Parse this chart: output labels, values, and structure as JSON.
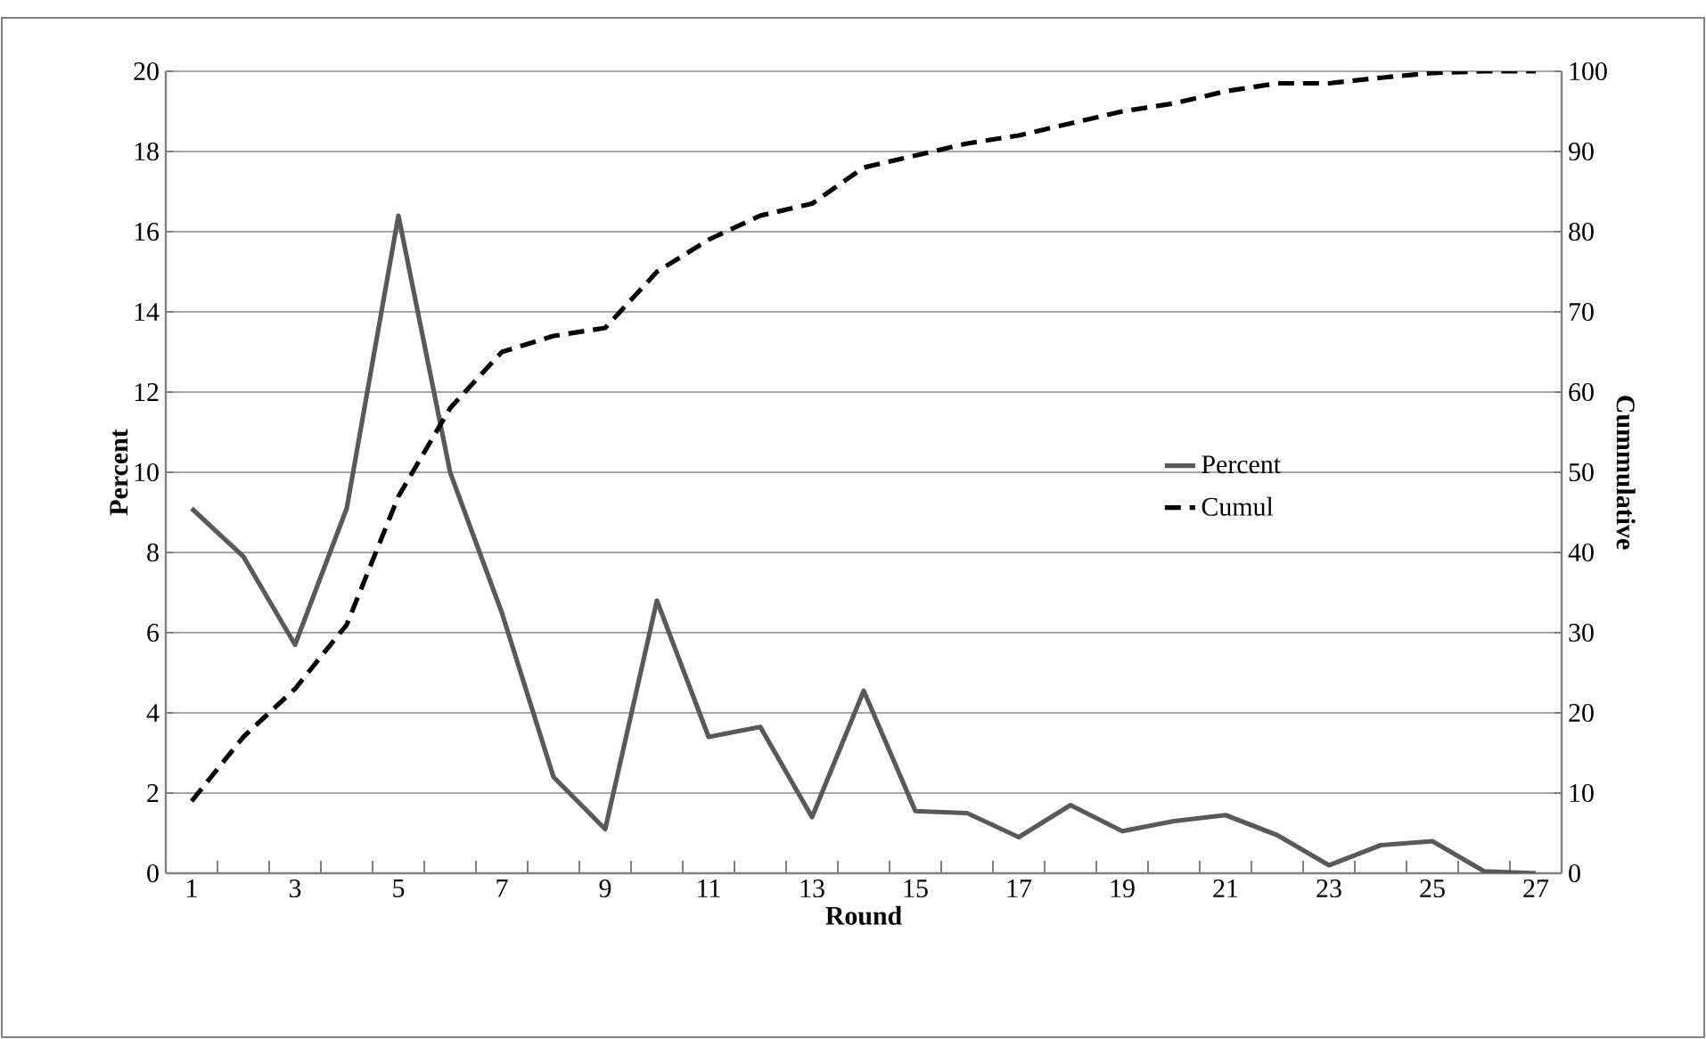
{
  "chart_data": {
    "type": "line",
    "xlabel": "Round",
    "ylabel": "Percent",
    "y2label": "Cummulative",
    "categories": [
      "1",
      null,
      "3",
      null,
      "5",
      null,
      "7",
      null,
      "9",
      null,
      "11",
      null,
      "13",
      null,
      "15",
      null,
      "17",
      null,
      "19",
      null,
      "21",
      null,
      "23",
      null,
      "25",
      null,
      "27"
    ],
    "series": [
      {
        "name": "Percent",
        "color": "#595959",
        "line_style": "solid",
        "values": [
          9.1,
          7.9,
          5.7,
          9.1,
          16.4,
          10.0,
          6.5,
          2.4,
          1.1,
          6.8,
          3.4,
          3.65,
          1.4,
          4.55,
          1.55,
          1.5,
          0.9,
          1.7,
          1.05,
          1.3,
          1.45,
          0.95,
          0.2,
          0.7,
          0.8,
          0.05,
          0.0
        ]
      },
      {
        "name": "Cumul",
        "color": "#000000",
        "line_style": "dashed",
        "axis": "y2",
        "values": [
          9,
          17,
          23,
          31,
          47,
          58,
          65,
          67,
          68,
          75,
          79,
          82,
          83.5,
          88,
          89.5,
          91,
          92,
          93.5,
          95,
          96,
          97.5,
          98.5,
          98.5,
          99.2,
          99.8,
          100,
          100
        ]
      }
    ],
    "ylim": [
      0,
      20
    ],
    "yticks": [
      0,
      2,
      4,
      6,
      8,
      10,
      12,
      14,
      16,
      18,
      20
    ],
    "y2lim": [
      0,
      100
    ],
    "y2ticks": [
      0,
      10,
      20,
      30,
      40,
      50,
      60,
      70,
      80,
      90,
      100
    ],
    "grid": "y",
    "legend": "right",
    "marker": "none"
  }
}
